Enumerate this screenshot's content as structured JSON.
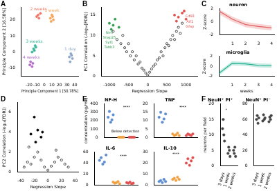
{
  "chart_data": [
    {
      "type": "scatter",
      "panel": "A",
      "xlabel": "Principle Component 1 [50.78%]",
      "ylabel": "Principle Component 2 [16.58%]",
      "xlim": [
        -30,
        45
      ],
      "xticks": [
        -20,
        -10,
        0,
        10,
        20,
        30,
        40
      ],
      "ylim": [
        -15,
        28
      ],
      "yticks": [
        -10,
        0,
        10,
        20
      ],
      "grid": false,
      "series": [
        {
          "name": "1 day",
          "color": "#8fa8c8",
          "marker": "circle",
          "x": [
            33,
            35,
            37,
            34,
            36
          ],
          "y": [
            -3,
            -1,
            -4,
            -6,
            -2
          ]
        },
        {
          "name": "1 week",
          "color": "#f5a55a",
          "marker": "circle",
          "x": [
            8,
            10,
            12,
            9,
            11
          ],
          "y": [
            21,
            23,
            20,
            19,
            22
          ]
        },
        {
          "name": "2 weeks",
          "color": "#ee7b6a",
          "marker": "circle",
          "x": [
            -8,
            -5,
            -7,
            -10
          ],
          "y": [
            23,
            24,
            21,
            22
          ]
        },
        {
          "name": "3 weeks",
          "color": "#3cb89a",
          "marker": "circle",
          "x": [
            -14,
            -12,
            -16,
            -13,
            -11
          ],
          "y": [
            2,
            4,
            0,
            1,
            3
          ]
        },
        {
          "name": "4 weeks",
          "color": "#b46ec8",
          "marker": "circle",
          "x": [
            -18,
            -16,
            -19,
            -15
          ],
          "y": [
            -6,
            -9,
            -8,
            -7
          ]
        }
      ]
    },
    {
      "type": "scatter",
      "panel": "B",
      "xlabel": "Regression Slope",
      "ylabel": "PC1 Correlation (-log₁₀[FDR])",
      "xlim": [
        -1200,
        1300
      ],
      "xticks": [
        -1000,
        -500,
        0,
        500,
        1000
      ],
      "ylim": [
        0,
        17
      ],
      "yticks": [
        0,
        5,
        10,
        15
      ],
      "grid": false,
      "series": [
        {
          "color": "#000000",
          "marker": "circle-open",
          "x": [
            -900,
            -800,
            -700,
            -650,
            -600,
            -550,
            -500,
            -450,
            -400,
            -350,
            -300,
            -250,
            -200,
            -150,
            -100,
            -50,
            0,
            50,
            100,
            150,
            200,
            250,
            300,
            350,
            400,
            450,
            500,
            550,
            600,
            650,
            700,
            750,
            800,
            850,
            900
          ],
          "y": [
            11,
            9,
            8,
            10,
            7,
            6,
            8,
            5,
            6,
            4,
            5,
            3,
            3.5,
            2,
            1.5,
            0.8,
            0.3,
            1,
            1.8,
            2.5,
            3,
            4,
            4.5,
            6,
            5,
            7,
            8,
            7.5,
            9,
            10,
            9,
            11,
            12,
            10.5,
            13
          ]
        },
        {
          "color": "#2e9e4e",
          "marker": "circle",
          "x": [
            -1000,
            -900,
            -850,
            -750,
            -950
          ],
          "y": [
            13,
            12.5,
            14,
            12,
            11.5
          ]
        },
        {
          "color": "#e05050",
          "marker": "circle",
          "x": [
            700,
            800,
            900,
            1000,
            950,
            750
          ],
          "y": [
            15,
            14.5,
            15.5,
            14,
            16,
            13.5
          ]
        }
      ],
      "annotations": [
        {
          "text": "Nefl",
          "x": -1000,
          "y": 10.6,
          "color": "#2e9e4e"
        },
        {
          "text": "Snap25",
          "x": -1000,
          "y": 9.4,
          "color": "#2e9e4e"
        },
        {
          "text": "Syt1",
          "x": -1000,
          "y": 8.2,
          "color": "#2e9e4e"
        },
        {
          "text": "Tubb3",
          "x": -1000,
          "y": 7.0,
          "color": "#2e9e4e"
        },
        {
          "text": "Cd68",
          "x": 1100,
          "y": 14.6,
          "color": "#e05050"
        },
        {
          "text": "Aif1",
          "x": 1100,
          "y": 13.4,
          "color": "#e05050"
        },
        {
          "text": "Gfap",
          "x": 1100,
          "y": 12.2,
          "color": "#e05050"
        }
      ]
    },
    {
      "type": "line",
      "panel": "C",
      "title": "neuron",
      "ylabel": "Z-score",
      "x": [
        0,
        1,
        2,
        3,
        4
      ],
      "xlim": [
        0,
        4.2
      ],
      "xticks": [
        1,
        2,
        3,
        4
      ],
      "ylim": [
        -2,
        2
      ],
      "yticks": [
        -2,
        0,
        2
      ],
      "grid": false,
      "series": [
        {
          "color": "#e06060",
          "values": [
            1.6,
            0.4,
            -0.4,
            -0.7,
            -0.9
          ],
          "ci_low": [
            1.1,
            0.0,
            -0.8,
            -1.1,
            -1.3
          ],
          "ci_high": [
            1.9,
            0.8,
            0.0,
            -0.3,
            -0.5
          ]
        }
      ]
    },
    {
      "type": "line",
      "title": "microglia",
      "xlabel": "weeks",
      "ylabel": "Z-score",
      "x": [
        0,
        1,
        2,
        3,
        4
      ],
      "xlim": [
        0,
        4.2
      ],
      "xticks": [
        1,
        2,
        3,
        4
      ],
      "ylim": [
        -2,
        2
      ],
      "yticks": [
        -2,
        0,
        2
      ],
      "grid": false,
      "series": [
        {
          "color": "#20b090",
          "values": [
            -1.4,
            0.6,
            0.5,
            0.2,
            0.1
          ],
          "ci_low": [
            -1.8,
            0.2,
            0.1,
            -0.2,
            -0.3
          ],
          "ci_high": [
            -1.0,
            1.0,
            0.9,
            0.6,
            0.5
          ]
        }
      ]
    },
    {
      "type": "scatter",
      "panel": "D",
      "xlabel": "Regression Slope",
      "ylabel": "PC2 Correlation (-log₁₀[FDR])",
      "xlim": [
        -45,
        45
      ],
      "xticks": [
        -40,
        -20,
        0,
        20,
        40
      ],
      "ylim": [
        0,
        7
      ],
      "yticks": [
        0,
        2,
        4,
        6
      ],
      "grid": false,
      "series": [
        {
          "color": "#000000",
          "marker": "circle-open",
          "x": [
            -35,
            -30,
            -25,
            -20,
            -15,
            -10,
            -5,
            0,
            5,
            10,
            15,
            20,
            25,
            30,
            -28,
            12
          ],
          "y": [
            0.5,
            1,
            0.8,
            1.5,
            2,
            1.2,
            0.5,
            0.2,
            0.6,
            1,
            1.5,
            1.2,
            0.8,
            0.5,
            2.5,
            2.2
          ]
        },
        {
          "color": "#000000",
          "marker": "circle",
          "x": [
            -20,
            -15,
            -25,
            -10,
            -18,
            -8
          ],
          "y": [
            5.5,
            4.2,
            3.8,
            3.5,
            3,
            4
          ]
        }
      ]
    },
    {
      "type": "strip",
      "panel": "E",
      "title": "NF-H",
      "ylabel": "concentration (pg/mL)",
      "tick_labels": "y",
      "categories": [
        null,
        null,
        null
      ],
      "colors": [
        "#5b8bd0",
        "#f0a040",
        "#e05050"
      ],
      "values": [
        [
          240,
          310,
          180,
          210,
          270
        ],
        [
          0,
          0,
          0,
          0,
          0
        ],
        [
          0,
          0,
          0,
          0,
          0
        ]
      ],
      "ylim": [
        0,
        400
      ],
      "yticks": [
        0,
        100,
        200,
        300,
        400
      ],
      "grid": false,
      "annotations": [
        {
          "text": "****",
          "x": 1.5,
          "y": 360,
          "color": "#000000"
        },
        {
          "text": "Below detection",
          "x": 1.4,
          "y": 70,
          "color": "#000000"
        }
      ]
    },
    {
      "type": "strip",
      "title": "TNF",
      "tick_labels": "y",
      "categories": [
        null,
        null,
        null
      ],
      "colors": [
        "#5b8bd0",
        "#f0a040",
        "#e05050"
      ],
      "values": [
        [
          12,
          15,
          9,
          11,
          14
        ],
        [
          2,
          1,
          1.5,
          2.5,
          1
        ],
        [
          1,
          2,
          1.5,
          1,
          2
        ]
      ],
      "ylim": [
        0,
        20
      ],
      "yticks": [
        0,
        5,
        10,
        15,
        20
      ],
      "grid": false,
      "annotations": [
        {
          "text": "****",
          "x": 1.5,
          "y": 18,
          "color": "#000000"
        }
      ]
    },
    {
      "type": "strip",
      "title": "IL-6",
      "tick_labels": "y",
      "categories": [
        null,
        null,
        null
      ],
      "colors": [
        "#5b8bd0",
        "#f0a040",
        "#e05050"
      ],
      "values": [
        [
          45,
          50,
          38,
          42,
          55
        ],
        [
          5,
          3,
          4,
          6,
          2
        ],
        [
          4,
          3,
          5,
          2,
          3
        ]
      ],
      "ylim": [
        0,
        60
      ],
      "yticks": [
        0,
        20,
        40,
        60
      ],
      "grid": false,
      "annotations": [
        {
          "text": "****",
          "x": 1.5,
          "y": 52,
          "color": "#000000"
        }
      ]
    },
    {
      "type": "strip",
      "title": "IL-10",
      "tick_labels": "y",
      "categories": [
        null,
        null,
        null
      ],
      "colors": [
        "#5b8bd0",
        "#f0a040",
        "#e05050"
      ],
      "values": [
        [
          3,
          4,
          2,
          5,
          3
        ],
        [
          5,
          6,
          4,
          7,
          5
        ],
        [
          20,
          24,
          18,
          22,
          25
        ]
      ],
      "ylim": [
        0,
        30
      ],
      "yticks": [
        0,
        10,
        20,
        30
      ],
      "grid": false,
      "annotations": [
        {
          "text": "****",
          "x": 1.0,
          "y": 28,
          "color": "#000000"
        }
      ]
    },
    {
      "type": "strip",
      "panel": "F",
      "title": "NeuN⁺ PI⁺",
      "ylabel": "neurons per field",
      "categories": [
        "3 days",
        "1 week",
        "2 weeks"
      ],
      "colors": [
        "#444444",
        "#444444",
        "#444444"
      ],
      "values": [
        [
          12,
          15,
          10,
          8
        ],
        [
          4,
          6,
          5,
          3
        ],
        [
          5,
          4,
          6,
          3
        ]
      ],
      "ylim": [
        0,
        20
      ],
      "yticks": [
        0,
        5,
        10,
        15,
        20
      ],
      "grid": false,
      "annotations": [
        {
          "text": "*",
          "x": 0.5,
          "y": 18,
          "color": "#000000"
        }
      ]
    },
    {
      "type": "strip",
      "title": "NeuN⁺ PI⁻",
      "categories": [
        "3 days",
        "1 week",
        "2 weeks"
      ],
      "colors": [
        "#444444",
        "#444444",
        "#444444"
      ],
      "values": [
        [
          60,
          65,
          55,
          62
        ],
        [
          58,
          66,
          60,
          62
        ],
        [
          57,
          63,
          60,
          65
        ]
      ],
      "ylim": [
        0,
        80
      ],
      "yticks": [
        0,
        20,
        40,
        60,
        80
      ],
      "grid": false
    }
  ]
}
